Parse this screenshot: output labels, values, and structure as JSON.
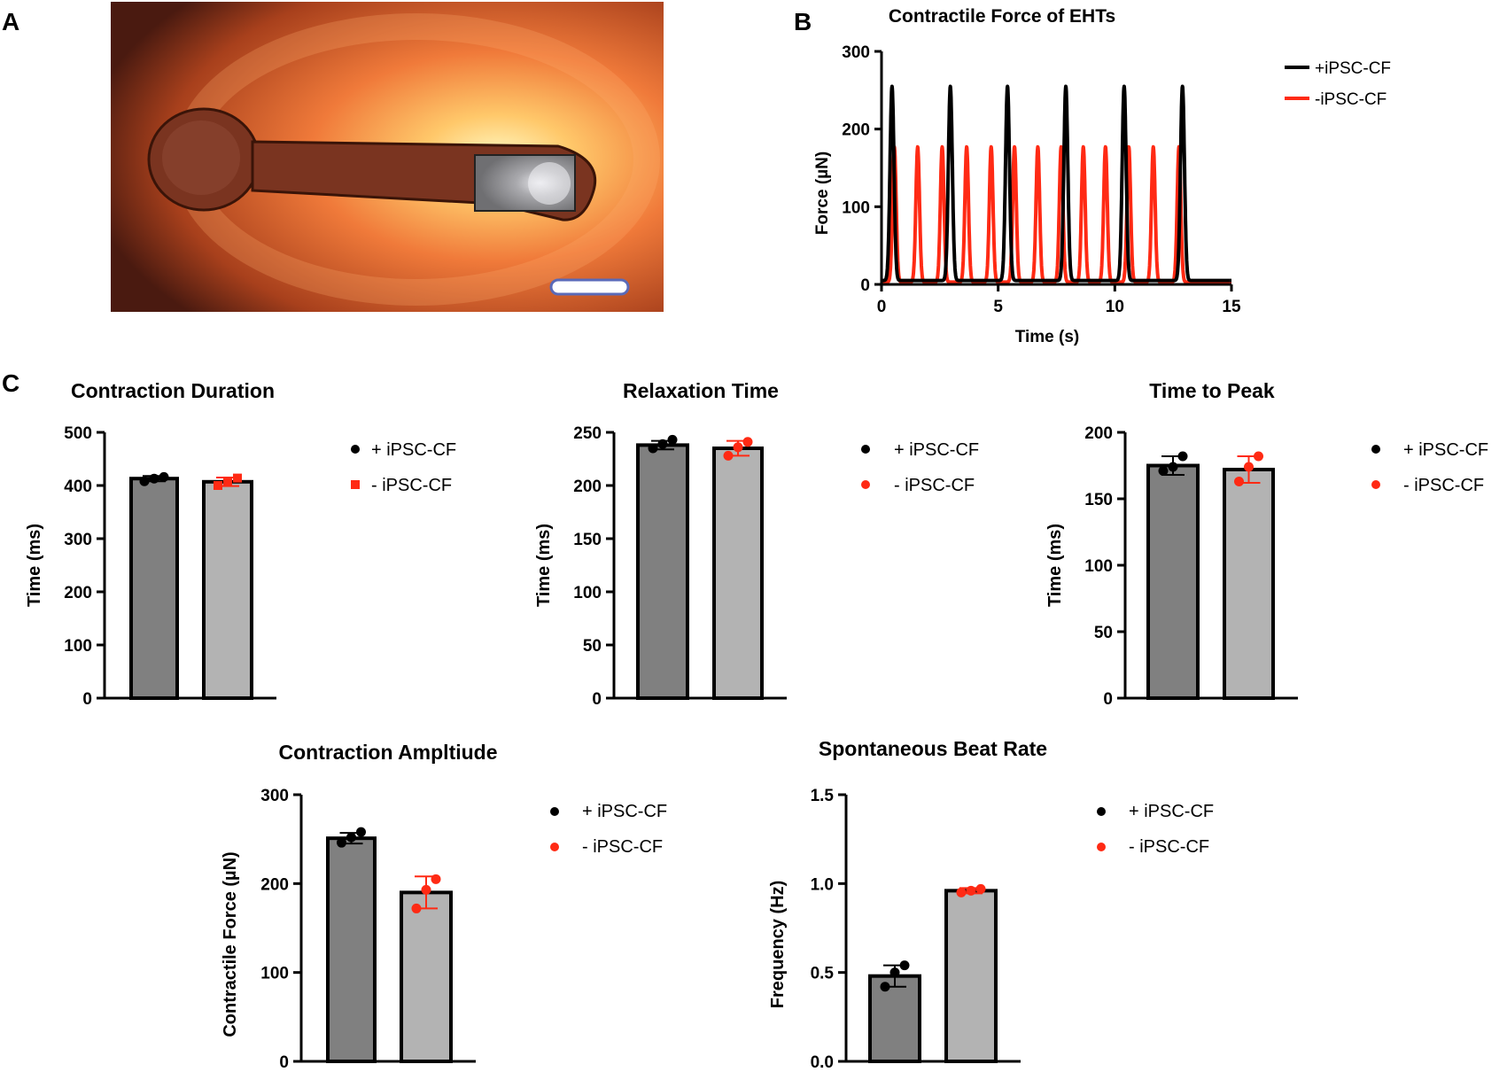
{
  "panel_labels": {
    "a": "A",
    "b": "B",
    "c": "C"
  },
  "photo": {
    "subject": "engineered-heart-tissue-photo",
    "bg_color": "#f07a3a",
    "tissue_color": "#7a3420"
  },
  "colors": {
    "black": "#000000",
    "red": "#ff2a14",
    "dark_bar": "#808080",
    "light_bar": "#b3b3b3"
  },
  "chart_data": [
    {
      "type": "line",
      "title": "Contractile Force of EHTs",
      "xlabel": "Time (s)",
      "ylabel": "Force (µN)",
      "xlim": [
        0,
        15
      ],
      "ylim": [
        0,
        300
      ],
      "xticks": [
        0,
        5,
        10,
        15
      ],
      "yticks": [
        0,
        100,
        200,
        300
      ],
      "series": [
        {
          "name": "+iPSC-CF",
          "color": "#000000",
          "baseline": 5,
          "peak_height": 250,
          "peak_width": 0.12,
          "peaks": [
            0.45,
            2.95,
            5.4,
            7.9,
            10.4,
            12.9
          ]
        },
        {
          "name": "-iPSC-CF",
          "color": "#ff2a14",
          "baseline": 3,
          "peak_height": 174,
          "peak_width": 0.11,
          "peaks": [
            0.55,
            1.55,
            2.6,
            3.65,
            4.7,
            5.7,
            6.7,
            7.7,
            8.65,
            9.6,
            10.6,
            11.65,
            12.75
          ]
        }
      ]
    },
    {
      "type": "bar",
      "title": "Contraction Duration",
      "ylabel": "Time (ms)",
      "ylim": [
        0,
        500
      ],
      "yticks": [
        0,
        100,
        200,
        300,
        400,
        500
      ],
      "legend": [
        "+ iPSC-CF",
        "- iPSC-CF"
      ],
      "marker2": "square",
      "bars": [
        {
          "value": 413,
          "error": 5,
          "points": [
            408,
            413,
            416
          ]
        },
        {
          "value": 407,
          "error": 8,
          "points": [
            400,
            407,
            414
          ]
        }
      ]
    },
    {
      "type": "bar",
      "title": "Relaxation Time",
      "ylabel": "Time (ms)",
      "ylim": [
        0,
        250
      ],
      "yticks": [
        0,
        50,
        100,
        150,
        200,
        250
      ],
      "legend": [
        "+ iPSC-CF",
        "- iPSC-CF"
      ],
      "marker2": "circle",
      "bars": [
        {
          "value": 238,
          "error": 4,
          "points": [
            235,
            239,
            243
          ]
        },
        {
          "value": 235,
          "error": 7,
          "points": [
            228,
            236,
            241
          ]
        }
      ]
    },
    {
      "type": "bar",
      "title": "Time to Peak",
      "ylabel": "Time (ms)",
      "ylim": [
        0,
        200
      ],
      "yticks": [
        0,
        50,
        100,
        150,
        200
      ],
      "legend": [
        "+ iPSC-CF",
        "- iPSC-CF"
      ],
      "marker2": "circle",
      "bars": [
        {
          "value": 175,
          "error": 7,
          "points": [
            171,
            174,
            182
          ]
        },
        {
          "value": 172,
          "error": 10,
          "points": [
            163,
            174,
            182
          ]
        }
      ]
    },
    {
      "type": "bar",
      "title": "Contraction Ampltiude",
      "ylabel": "Contractile Force (µN)",
      "ylim": [
        0,
        300
      ],
      "yticks": [
        0,
        100,
        200,
        300
      ],
      "legend": [
        "+ iPSC-CF",
        "- iPSC-CF"
      ],
      "marker2": "circle",
      "bars": [
        {
          "value": 251,
          "error": 6,
          "points": [
            246,
            252,
            258
          ]
        },
        {
          "value": 190,
          "error": 18,
          "points": [
            172,
            193,
            205
          ]
        }
      ]
    },
    {
      "type": "bar",
      "title": "Spontaneous Beat Rate",
      "ylabel": "Frequency (Hz)",
      "ylim": [
        0,
        1.5
      ],
      "yticks": [
        "0.0",
        "0.5",
        "1.0",
        "1.5"
      ],
      "legend": [
        "+ iPSC-CF",
        "- iPSC-CF"
      ],
      "marker2": "circle",
      "bars": [
        {
          "value": 0.48,
          "error": 0.06,
          "points": [
            0.42,
            0.5,
            0.54
          ]
        },
        {
          "value": 0.96,
          "error": 0.015,
          "points": [
            0.95,
            0.96,
            0.97
          ]
        }
      ]
    }
  ]
}
